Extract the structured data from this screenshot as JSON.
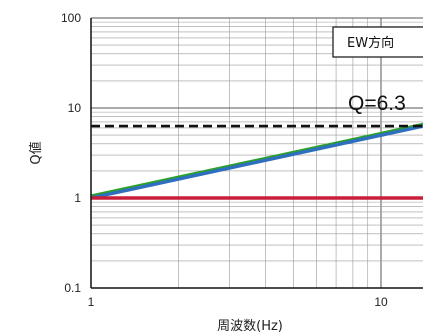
{
  "chart_data": {
    "type": "line",
    "title": "",
    "xlabel": "周波数(Hz)",
    "ylabel": "Q値",
    "x_scale": "log",
    "y_scale": "log",
    "xlim": [
      1,
      15
    ],
    "ylim": [
      0.1,
      100
    ],
    "x_ticks": [
      {
        "value": 1,
        "label": "1"
      },
      {
        "value": 10,
        "label": "10"
      }
    ],
    "y_ticks": [
      {
        "value": 0.1,
        "label": "0.1"
      },
      {
        "value": 1,
        "label": "1"
      },
      {
        "value": 10,
        "label": "10"
      },
      {
        "value": 100,
        "label": "100"
      }
    ],
    "grid": true,
    "legend_box": {
      "text": "EW方向",
      "placement": "top-right"
    },
    "annotation": {
      "text": "Q=6.3"
    },
    "series": [
      {
        "points": [
          [
            1,
            1.05
          ],
          [
            15,
            6.9
          ]
        ],
        "color": "#2ba02b",
        "style": "solid"
      },
      {
        "points": [
          [
            1,
            1.0
          ],
          [
            15,
            6.6
          ]
        ],
        "color": "#2e6fbf",
        "style": "solid"
      },
      {
        "points": [
          [
            1,
            1.0
          ],
          [
            15,
            1.0
          ]
        ],
        "color": "#c81e3a",
        "style": "solid"
      },
      {
        "points": [
          [
            1,
            6.3
          ],
          [
            15,
            6.3
          ]
        ],
        "color": "#111111",
        "style": "dashed"
      }
    ]
  }
}
